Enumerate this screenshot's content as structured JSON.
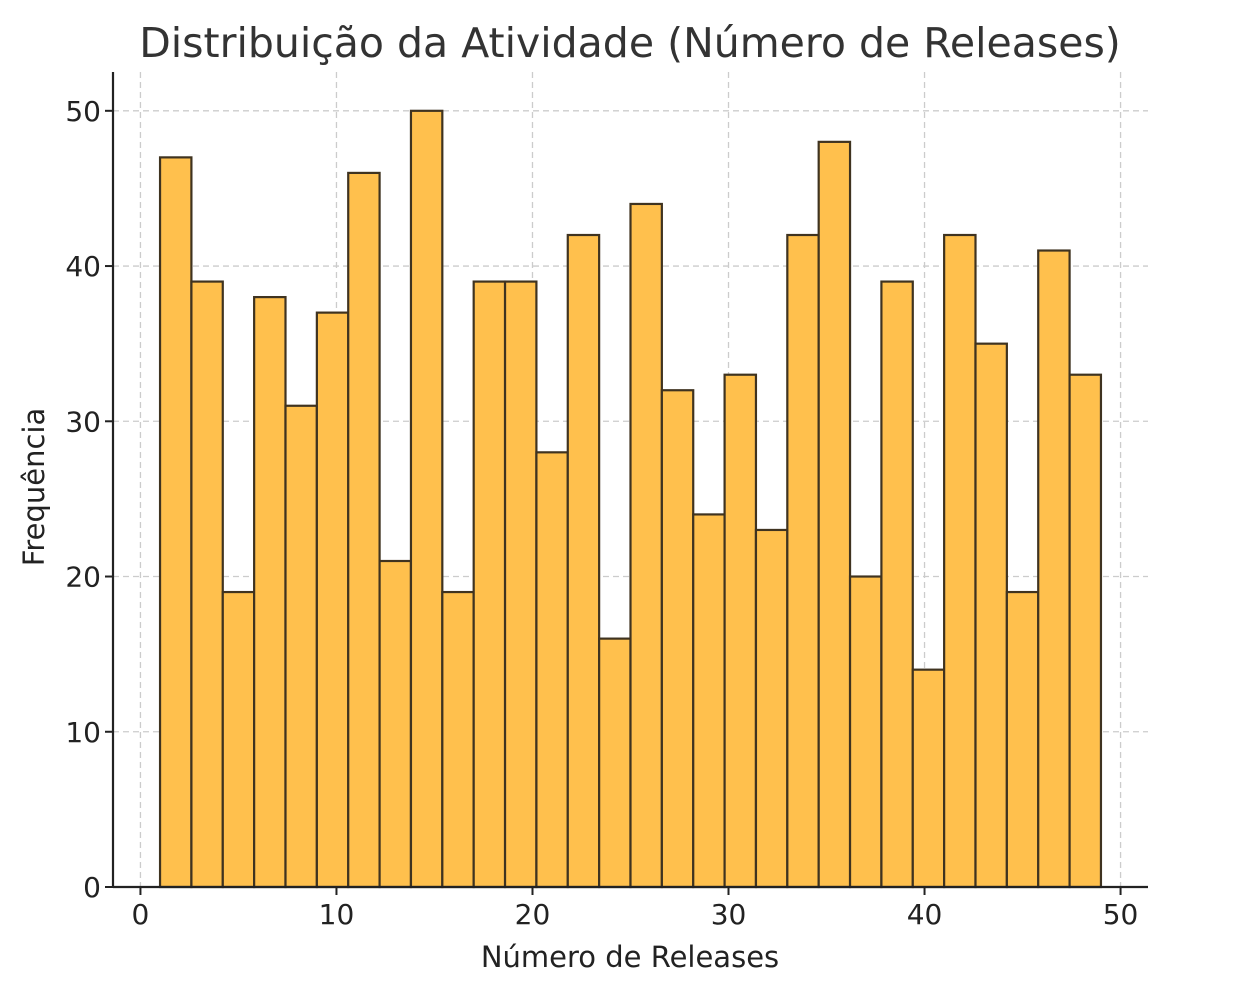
{
  "chart_data": {
    "type": "bar",
    "subtype": "histogram",
    "title": "Distribuição da Atividade (Número de Releases)",
    "xlabel": "Número de Releases",
    "ylabel": "Frequência",
    "xlim": [
      -1.4,
      51.4
    ],
    "ylim": [
      0,
      52.5
    ],
    "xticks": [
      0,
      10,
      20,
      30,
      40,
      50
    ],
    "yticks": [
      0,
      10,
      20,
      30,
      40,
      50
    ],
    "grid": true,
    "bin_start": 1,
    "bin_width": 1.6,
    "bar_color": "#ffc04d",
    "edge_color": "#3f3320",
    "values": [
      47,
      39,
      19,
      38,
      31,
      37,
      46,
      21,
      50,
      19,
      39,
      39,
      28,
      42,
      16,
      44,
      32,
      24,
      33,
      23,
      42,
      48,
      20,
      39,
      14,
      42,
      35,
      19,
      41,
      33
    ]
  }
}
